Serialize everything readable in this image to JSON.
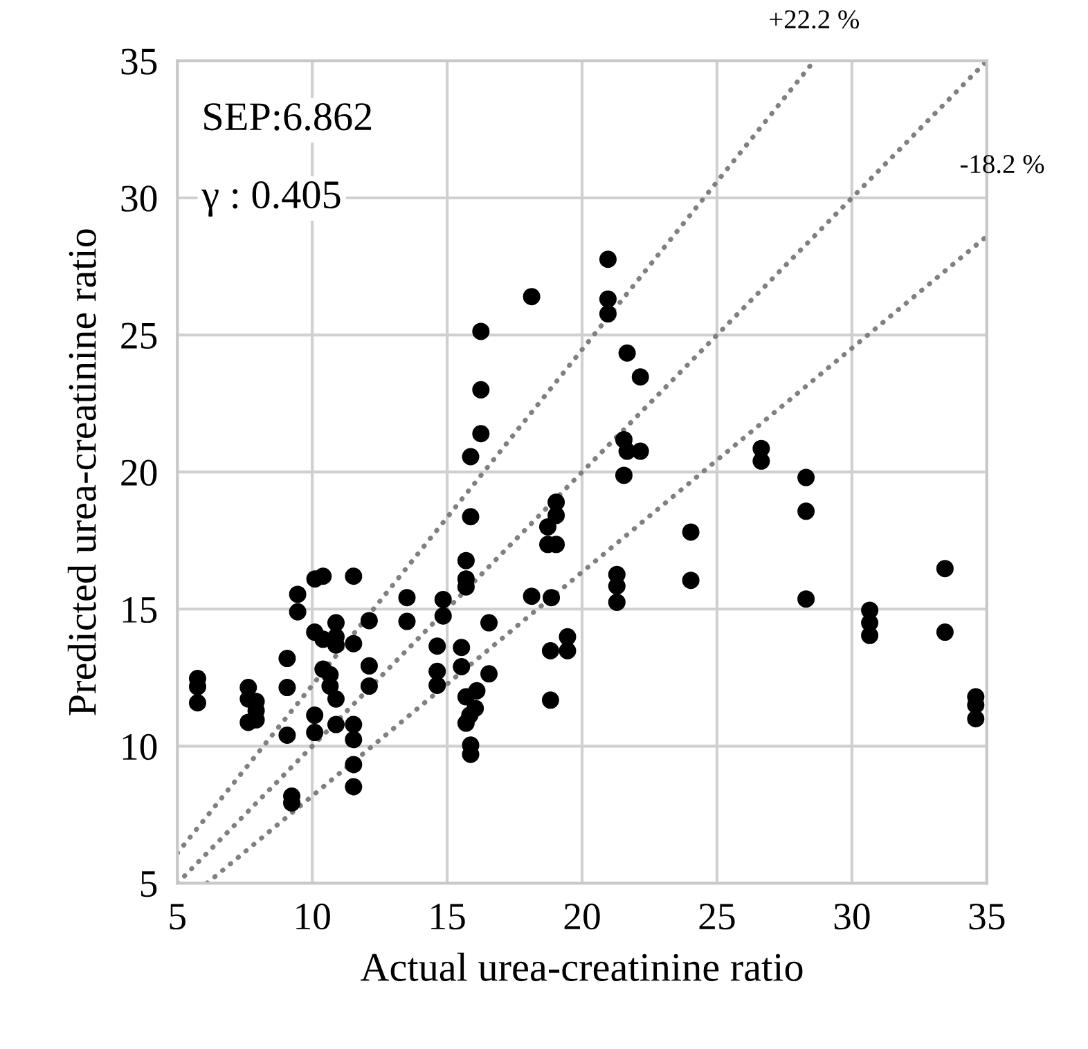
{
  "chart_data": {
    "type": "scatter",
    "xlabel": "Actual urea-creatinine ratio",
    "ylabel": "Predicted urea-creatinine ratio",
    "annotations": [
      "SEP:6.862",
      "γ : 0.405"
    ],
    "xlim": [
      5,
      35
    ],
    "ylim": [
      5,
      35
    ],
    "xticks": [
      5,
      10,
      15,
      20,
      25,
      30,
      35
    ],
    "yticks": [
      5,
      10,
      15,
      20,
      25,
      30,
      35
    ],
    "grid": true,
    "legend": false,
    "series": [
      {
        "color": "#000000",
        "marker": "circle",
        "x": [
          5.75,
          5.75,
          5.75,
          7.63,
          7.63,
          7.92,
          7.92,
          7.63,
          7.92,
          9.07,
          9.07,
          9.07,
          9.46,
          9.46,
          9.24,
          9.24,
          10.1,
          10.4,
          11.53,
          10.09,
          10.4,
          10.88,
          10.88,
          10.88,
          11.53,
          12.11,
          10.4,
          10.66,
          10.66,
          10.88,
          10.09,
          10.09,
          10.88,
          11.53,
          11.53,
          11.53,
          11.53,
          12.11,
          12.11,
          13.51,
          13.51,
          14.85,
          14.85,
          14.63,
          14.63,
          14.63,
          15.53,
          15.53,
          16.55,
          16.55,
          16.1,
          15.7,
          16.04,
          15.84,
          15.7,
          15.87,
          15.87,
          15.7,
          15.7,
          15.7,
          15.87,
          15.87,
          16.25,
          16.25,
          16.25,
          18.13,
          20.96,
          20.96,
          20.96,
          21.67,
          22.16,
          21.55,
          21.67,
          22.16,
          21.55,
          19.04,
          19.04,
          18.73,
          18.73,
          19.04,
          18.13,
          18.86,
          18.83,
          19.46,
          19.46,
          18.83,
          21.29,
          21.29,
          21.29,
          24.03,
          24.03,
          26.64,
          26.64,
          28.3,
          28.3,
          28.3,
          33.45,
          33.45,
          30.66,
          30.66,
          30.66,
          34.59,
          34.59,
          34.59
        ],
        "values": [
          12.47,
          12.17,
          11.58,
          12.14,
          11.72,
          11.63,
          11.3,
          10.87,
          10.96,
          13.2,
          12.14,
          10.4,
          15.54,
          14.9,
          8.18,
          7.93,
          16.1,
          16.2,
          16.2,
          14.16,
          13.9,
          14.5,
          13.99,
          13.69,
          13.74,
          14.58,
          12.81,
          12.61,
          12.19,
          11.72,
          11.13,
          10.5,
          10.79,
          10.79,
          10.24,
          9.33,
          8.52,
          12.93,
          12.19,
          15.42,
          14.55,
          15.35,
          14.75,
          13.65,
          12.73,
          12.22,
          13.6,
          12.9,
          14.5,
          12.64,
          12.02,
          11.8,
          11.38,
          11.13,
          10.84,
          10.04,
          9.7,
          16.77,
          16.1,
          15.81,
          20.56,
          18.37,
          25.13,
          23.0,
          21.4,
          26.4,
          27.76,
          26.31,
          25.77,
          24.34,
          23.47,
          21.18,
          20.76,
          20.76,
          19.88,
          18.9,
          18.42,
          18.0,
          17.36,
          17.36,
          15.47,
          15.42,
          13.48,
          13.99,
          13.48,
          11.68,
          16.26,
          15.84,
          15.25,
          17.81,
          16.05,
          20.86,
          20.4,
          19.8,
          18.57,
          15.37,
          16.48,
          14.16,
          14.96,
          14.5,
          14.04,
          11.8,
          11.5,
          11.0
        ]
      },
      {
        "type": "line",
        "color": "#808080",
        "line_style": "dotted",
        "x": [
          5,
          35
        ],
        "values": [
          5,
          35
        ]
      },
      {
        "type": "line",
        "color": "#808080",
        "line_style": "dotted",
        "name": "+22.2 %",
        "x": [
          5,
          28.6
        ],
        "values": [
          6.1,
          35
        ]
      },
      {
        "type": "line",
        "color": "#808080",
        "line_style": "dotted",
        "name": "-18.2 %",
        "x": [
          6.1,
          35
        ],
        "values": [
          5,
          28.6
        ]
      }
    ]
  }
}
